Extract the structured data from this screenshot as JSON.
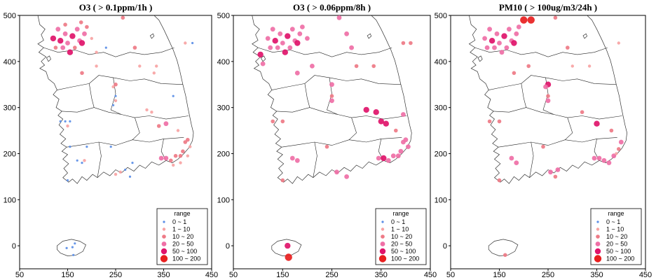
{
  "chart_data": [
    {
      "type": "scatter",
      "title": "O3 ( > 0.1ppm/1h )",
      "xlim": [
        50,
        450
      ],
      "ylim": [
        -50,
        500
      ],
      "x_ticks": [
        "50",
        "150",
        "250",
        "350",
        "450"
      ],
      "y_ticks": [
        "0",
        "100",
        "200",
        "300",
        "400",
        "500"
      ],
      "legend": {
        "title": "range",
        "position": "bottom-right",
        "entries": [
          "0 ~ 1",
          "1 ~ 10",
          "10 ~ 20",
          "20 ~ 50",
          "50 ~ 100",
          "100 ~ 200"
        ]
      },
      "points": [
        {
          "x": 120,
          "y": 450,
          "c": 4
        },
        {
          "x": 135,
          "y": 445,
          "c": 4
        },
        {
          "x": 145,
          "y": 460,
          "c": 3
        },
        {
          "x": 130,
          "y": 470,
          "c": 3
        },
        {
          "x": 150,
          "y": 440,
          "c": 3
        },
        {
          "x": 160,
          "y": 455,
          "c": 4
        },
        {
          "x": 170,
          "y": 470,
          "c": 3
        },
        {
          "x": 175,
          "y": 445,
          "c": 3
        },
        {
          "x": 140,
          "y": 430,
          "c": 3
        },
        {
          "x": 125,
          "y": 430,
          "c": 2
        },
        {
          "x": 165,
          "y": 430,
          "c": 2
        },
        {
          "x": 185,
          "y": 460,
          "c": 3
        },
        {
          "x": 190,
          "y": 475,
          "c": 2
        },
        {
          "x": 200,
          "y": 450,
          "c": 1
        },
        {
          "x": 180,
          "y": 440,
          "c": 4
        },
        {
          "x": 155,
          "y": 420,
          "c": 4
        },
        {
          "x": 145,
          "y": 480,
          "c": 2
        },
        {
          "x": 178,
          "y": 485,
          "c": 2
        },
        {
          "x": 210,
          "y": 420,
          "c": 1
        },
        {
          "x": 230,
          "y": 430,
          "c": 0
        },
        {
          "x": 265,
          "y": 495,
          "c": 2
        },
        {
          "x": 290,
          "y": 430,
          "c": 2
        },
        {
          "x": 395,
          "y": 440,
          "c": 1
        },
        {
          "x": 410,
          "y": 440,
          "c": 0
        },
        {
          "x": 180,
          "y": 375,
          "c": 2
        },
        {
          "x": 210,
          "y": 390,
          "c": 1
        },
        {
          "x": 250,
          "y": 350,
          "c": 2
        },
        {
          "x": 245,
          "y": 345,
          "c": 1
        },
        {
          "x": 300,
          "y": 390,
          "c": 1
        },
        {
          "x": 335,
          "y": 390,
          "c": 1
        },
        {
          "x": 330,
          "y": 375,
          "c": 1
        },
        {
          "x": 250,
          "y": 325,
          "c": 0
        },
        {
          "x": 250,
          "y": 315,
          "c": 1
        },
        {
          "x": 245,
          "y": 305,
          "c": 0
        },
        {
          "x": 370,
          "y": 325,
          "c": 0
        },
        {
          "x": 355,
          "y": 265,
          "c": 3
        },
        {
          "x": 340,
          "y": 260,
          "c": 2
        },
        {
          "x": 325,
          "y": 290,
          "c": 1
        },
        {
          "x": 315,
          "y": 295,
          "c": 1
        },
        {
          "x": 380,
          "y": 250,
          "c": 1
        },
        {
          "x": 135,
          "y": 270,
          "c": 0
        },
        {
          "x": 145,
          "y": 270,
          "c": 0
        },
        {
          "x": 150,
          "y": 260,
          "c": 1
        },
        {
          "x": 155,
          "y": 270,
          "c": 0
        },
        {
          "x": 155,
          "y": 215,
          "c": 0
        },
        {
          "x": 190,
          "y": 215,
          "c": 0
        },
        {
          "x": 240,
          "y": 215,
          "c": 0
        },
        {
          "x": 180,
          "y": 180,
          "c": 0
        },
        {
          "x": 170,
          "y": 185,
          "c": 0
        },
        {
          "x": 185,
          "y": 185,
          "c": 1
        },
        {
          "x": 260,
          "y": 160,
          "c": 1
        },
        {
          "x": 250,
          "y": 155,
          "c": 1
        },
        {
          "x": 270,
          "y": 165,
          "c": 0
        },
        {
          "x": 280,
          "y": 150,
          "c": 0
        },
        {
          "x": 285,
          "y": 180,
          "c": 0
        },
        {
          "x": 345,
          "y": 190,
          "c": 3
        },
        {
          "x": 355,
          "y": 190,
          "c": 3
        },
        {
          "x": 365,
          "y": 185,
          "c": 2
        },
        {
          "x": 375,
          "y": 195,
          "c": 2
        },
        {
          "x": 385,
          "y": 195,
          "c": 2
        },
        {
          "x": 390,
          "y": 205,
          "c": 2
        },
        {
          "x": 395,
          "y": 225,
          "c": 2
        },
        {
          "x": 400,
          "y": 230,
          "c": 2
        },
        {
          "x": 405,
          "y": 215,
          "c": 1
        },
        {
          "x": 370,
          "y": 175,
          "c": 1
        },
        {
          "x": 385,
          "y": 180,
          "c": 1
        },
        {
          "x": 400,
          "y": 195,
          "c": 1
        },
        {
          "x": 150,
          "y": 142,
          "c": 0
        },
        {
          "x": 148,
          "y": -5,
          "c": 0
        },
        {
          "x": 160,
          "y": -3,
          "c": 0
        },
        {
          "x": 162,
          "y": -20,
          "c": 0
        },
        {
          "x": 165,
          "y": 5,
          "c": 0
        }
      ]
    },
    {
      "type": "scatter",
      "title": "O3 ( > 0.06ppm/8h )",
      "xlim": [
        50,
        450
      ],
      "ylim": [
        -50,
        500
      ],
      "x_ticks": [
        "50",
        "150",
        "250",
        "350",
        "450"
      ],
      "y_ticks": [
        "0",
        "100",
        "200",
        "300",
        "400",
        "500"
      ],
      "legend": {
        "title": "range",
        "position": "bottom-right",
        "entries": [
          "0 ~ 1",
          "1 ~ 10",
          "10 ~ 20",
          "20 ~ 50",
          "50 ~ 100",
          "100 ~ 200"
        ]
      },
      "points": [
        {
          "x": 120,
          "y": 450,
          "c": 3
        },
        {
          "x": 135,
          "y": 445,
          "c": 4
        },
        {
          "x": 145,
          "y": 460,
          "c": 3
        },
        {
          "x": 130,
          "y": 470,
          "c": 3
        },
        {
          "x": 150,
          "y": 440,
          "c": 3
        },
        {
          "x": 160,
          "y": 455,
          "c": 4
        },
        {
          "x": 170,
          "y": 470,
          "c": 3
        },
        {
          "x": 175,
          "y": 445,
          "c": 3
        },
        {
          "x": 140,
          "y": 430,
          "c": 3
        },
        {
          "x": 125,
          "y": 430,
          "c": 3
        },
        {
          "x": 165,
          "y": 430,
          "c": 3
        },
        {
          "x": 185,
          "y": 460,
          "c": 3
        },
        {
          "x": 190,
          "y": 475,
          "c": 3
        },
        {
          "x": 200,
          "y": 450,
          "c": 3
        },
        {
          "x": 180,
          "y": 440,
          "c": 4
        },
        {
          "x": 155,
          "y": 420,
          "c": 4
        },
        {
          "x": 105,
          "y": 415,
          "c": 4
        },
        {
          "x": 110,
          "y": 395,
          "c": 3
        },
        {
          "x": 265,
          "y": 495,
          "c": 3
        },
        {
          "x": 280,
          "y": 460,
          "c": 3
        },
        {
          "x": 290,
          "y": 430,
          "c": 3
        },
        {
          "x": 395,
          "y": 440,
          "c": 2
        },
        {
          "x": 410,
          "y": 440,
          "c": 2
        },
        {
          "x": 180,
          "y": 375,
          "c": 3
        },
        {
          "x": 210,
          "y": 390,
          "c": 3
        },
        {
          "x": 250,
          "y": 350,
          "c": 3
        },
        {
          "x": 300,
          "y": 390,
          "c": 2
        },
        {
          "x": 335,
          "y": 390,
          "c": 2
        },
        {
          "x": 250,
          "y": 325,
          "c": 2
        },
        {
          "x": 250,
          "y": 315,
          "c": 3
        },
        {
          "x": 320,
          "y": 295,
          "c": 4
        },
        {
          "x": 340,
          "y": 290,
          "c": 4
        },
        {
          "x": 350,
          "y": 270,
          "c": 4
        },
        {
          "x": 360,
          "y": 265,
          "c": 4
        },
        {
          "x": 380,
          "y": 250,
          "c": 2
        },
        {
          "x": 395,
          "y": 285,
          "c": 3
        },
        {
          "x": 130,
          "y": 270,
          "c": 2
        },
        {
          "x": 150,
          "y": 270,
          "c": 2
        },
        {
          "x": 180,
          "y": 185,
          "c": 3
        },
        {
          "x": 170,
          "y": 190,
          "c": 3
        },
        {
          "x": 240,
          "y": 215,
          "c": 2
        },
        {
          "x": 260,
          "y": 160,
          "c": 3
        },
        {
          "x": 280,
          "y": 150,
          "c": 3
        },
        {
          "x": 345,
          "y": 190,
          "c": 3
        },
        {
          "x": 355,
          "y": 190,
          "c": 4
        },
        {
          "x": 365,
          "y": 185,
          "c": 3
        },
        {
          "x": 375,
          "y": 195,
          "c": 3
        },
        {
          "x": 385,
          "y": 195,
          "c": 3
        },
        {
          "x": 390,
          "y": 205,
          "c": 3
        },
        {
          "x": 395,
          "y": 225,
          "c": 3
        },
        {
          "x": 400,
          "y": 230,
          "c": 3
        },
        {
          "x": 405,
          "y": 215,
          "c": 3
        },
        {
          "x": 150,
          "y": 142,
          "c": 2
        },
        {
          "x": 160,
          "y": 0,
          "c": 4
        },
        {
          "x": 162,
          "y": -25,
          "c": 5
        }
      ]
    },
    {
      "type": "scatter",
      "title": "PM10 ( > 100ug/m3/24h )",
      "xlim": [
        50,
        450
      ],
      "ylim": [
        -50,
        500
      ],
      "x_ticks": [
        "50",
        "150",
        "250",
        "350",
        "450"
      ],
      "y_ticks": [
        "0",
        "100",
        "200",
        "300",
        "400",
        "500"
      ],
      "legend": {
        "title": "range",
        "position": "bottom-right",
        "entries": [
          "0 ~ 1",
          "1 ~ 10",
          "10 ~ 20",
          "20 ~ 50",
          "50 ~ 100",
          "100 ~ 200"
        ]
      },
      "points": [
        {
          "x": 120,
          "y": 450,
          "c": 3
        },
        {
          "x": 135,
          "y": 445,
          "c": 4
        },
        {
          "x": 145,
          "y": 460,
          "c": 3
        },
        {
          "x": 130,
          "y": 470,
          "c": 3
        },
        {
          "x": 150,
          "y": 440,
          "c": 3
        },
        {
          "x": 160,
          "y": 455,
          "c": 4
        },
        {
          "x": 170,
          "y": 470,
          "c": 3
        },
        {
          "x": 175,
          "y": 445,
          "c": 3
        },
        {
          "x": 140,
          "y": 430,
          "c": 3
        },
        {
          "x": 125,
          "y": 430,
          "c": 3
        },
        {
          "x": 165,
          "y": 430,
          "c": 3
        },
        {
          "x": 185,
          "y": 460,
          "c": 3
        },
        {
          "x": 190,
          "y": 475,
          "c": 3
        },
        {
          "x": 180,
          "y": 440,
          "c": 4
        },
        {
          "x": 155,
          "y": 420,
          "c": 3
        },
        {
          "x": 200,
          "y": 490,
          "c": 5
        },
        {
          "x": 215,
          "y": 490,
          "c": 5
        },
        {
          "x": 265,
          "y": 495,
          "c": 2
        },
        {
          "x": 290,
          "y": 430,
          "c": 2
        },
        {
          "x": 395,
          "y": 440,
          "c": 1
        },
        {
          "x": 180,
          "y": 375,
          "c": 2
        },
        {
          "x": 210,
          "y": 390,
          "c": 2
        },
        {
          "x": 250,
          "y": 350,
          "c": 4
        },
        {
          "x": 245,
          "y": 345,
          "c": 3
        },
        {
          "x": 300,
          "y": 390,
          "c": 1
        },
        {
          "x": 335,
          "y": 390,
          "c": 1
        },
        {
          "x": 250,
          "y": 325,
          "c": 2
        },
        {
          "x": 250,
          "y": 315,
          "c": 3
        },
        {
          "x": 320,
          "y": 290,
          "c": 2
        },
        {
          "x": 350,
          "y": 265,
          "c": 4
        },
        {
          "x": 380,
          "y": 250,
          "c": 2
        },
        {
          "x": 130,
          "y": 270,
          "c": 2
        },
        {
          "x": 150,
          "y": 270,
          "c": 2
        },
        {
          "x": 175,
          "y": 190,
          "c": 3
        },
        {
          "x": 185,
          "y": 180,
          "c": 3
        },
        {
          "x": 240,
          "y": 215,
          "c": 2
        },
        {
          "x": 255,
          "y": 160,
          "c": 3
        },
        {
          "x": 270,
          "y": 165,
          "c": 3
        },
        {
          "x": 265,
          "y": 150,
          "c": 2
        },
        {
          "x": 345,
          "y": 190,
          "c": 3
        },
        {
          "x": 355,
          "y": 190,
          "c": 3
        },
        {
          "x": 365,
          "y": 185,
          "c": 3
        },
        {
          "x": 375,
          "y": 180,
          "c": 3
        },
        {
          "x": 385,
          "y": 195,
          "c": 3
        },
        {
          "x": 395,
          "y": 210,
          "c": 2
        },
        {
          "x": 400,
          "y": 225,
          "c": 3
        },
        {
          "x": 390,
          "y": 200,
          "c": 1
        },
        {
          "x": 150,
          "y": 142,
          "c": 2
        },
        {
          "x": 162,
          "y": -20,
          "c": 2
        }
      ]
    }
  ],
  "colors": {
    "class_colors": [
      "#5b8ee6",
      "#f7a3a3",
      "#ee7a86",
      "#ef6fa6",
      "#e0136a",
      "#e81e1e"
    ],
    "coastline": "#333333",
    "frame": "#000000"
  }
}
